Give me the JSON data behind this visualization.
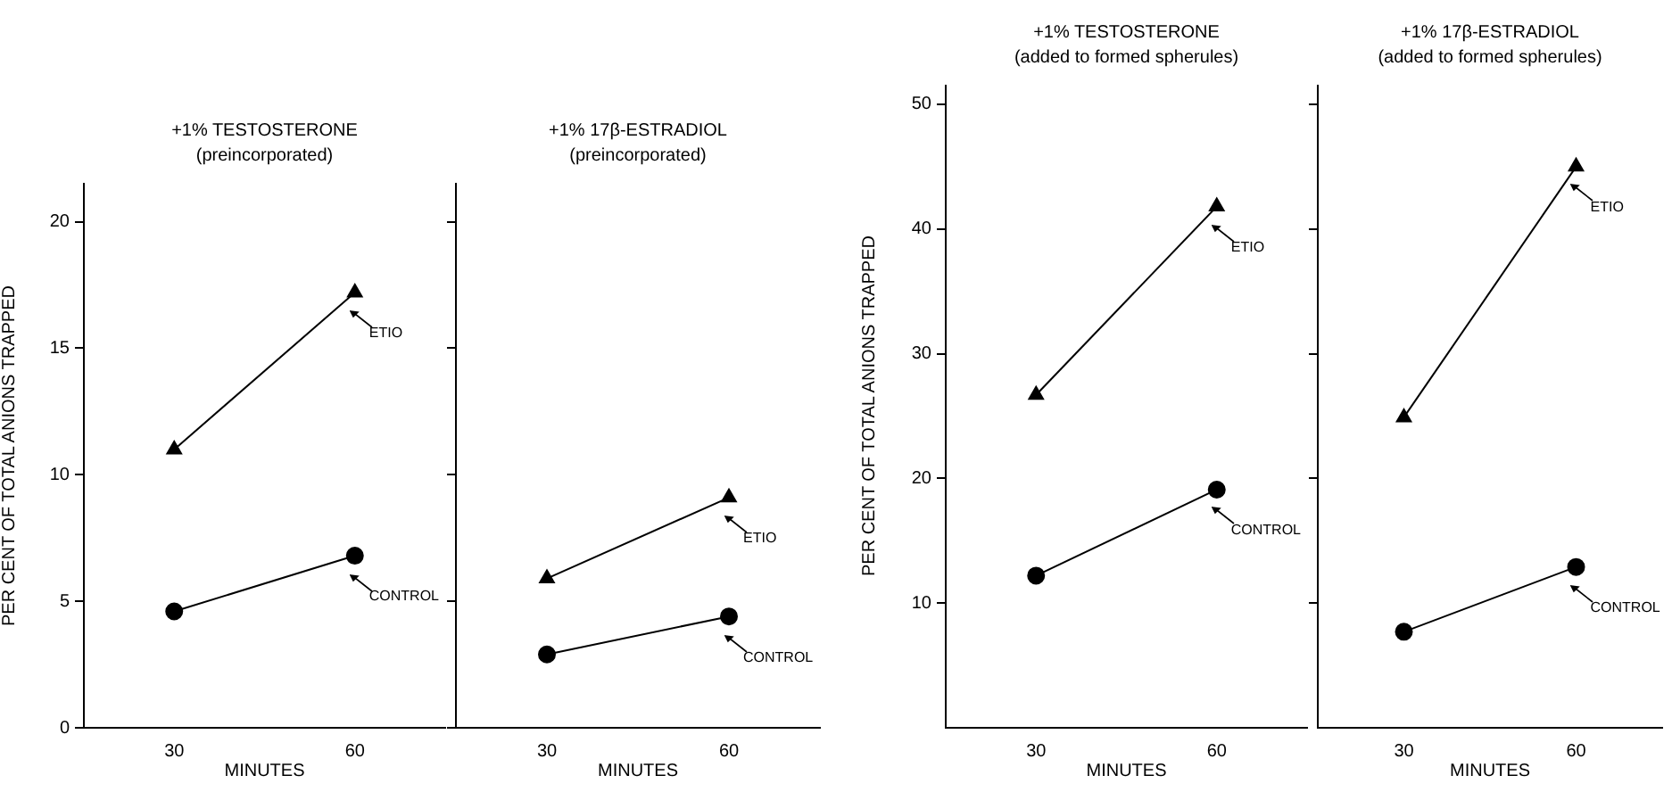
{
  "chart_data": [
    {
      "type": "line",
      "title": "+1% TESTOSTERONE",
      "subtitle": "(preincorporated)",
      "xlabel": "MINUTES",
      "ylabel": "PER CENT OF TOTAL ANIONS TRAPPED",
      "categories": [
        "30",
        "60"
      ],
      "series": [
        {
          "name": "ETIO",
          "color": "#000000",
          "marker": "triangle",
          "values": [
            11,
            17.2
          ]
        },
        {
          "name": "CONTROL",
          "color": "#000000",
          "marker": "circle",
          "values": [
            4.6,
            6.8
          ]
        }
      ],
      "ylim": [
        0,
        21.5
      ],
      "yticks": [
        0,
        5,
        10,
        15,
        20
      ],
      "legend": "right"
    },
    {
      "type": "line",
      "title": "+1% 17β-ESTRADIOL",
      "subtitle": "(preincorporated)",
      "xlabel": "MINUTES",
      "categories": [
        "30",
        "60"
      ],
      "series": [
        {
          "name": "ETIO",
          "color": "#000000",
          "marker": "triangle",
          "values": [
            5.9,
            9.1
          ]
        },
        {
          "name": "CONTROL",
          "color": "#000000",
          "marker": "circle",
          "values": [
            2.9,
            4.4
          ]
        }
      ],
      "ylim": [
        0,
        21.5
      ],
      "yticks": [
        0,
        5,
        10,
        15,
        20
      ],
      "tick_labels": "x",
      "legend": "right"
    },
    {
      "type": "line",
      "title": "+1% TESTOSTERONE",
      "subtitle": "(added to formed spherules)",
      "xlabel": "MINUTES",
      "ylabel": "PER CENT OF TOTAL ANIONS TRAPPED",
      "categories": [
        "30",
        "60"
      ],
      "series": [
        {
          "name": "ETIO",
          "color": "#000000",
          "marker": "triangle",
          "values": [
            26.7,
            41.8
          ]
        },
        {
          "name": "CONTROL",
          "color": "#000000",
          "marker": "circle",
          "values": [
            12.2,
            19.1
          ]
        }
      ],
      "ylim": [
        0,
        51.5
      ],
      "yticks": [
        10,
        20,
        30,
        40,
        50
      ],
      "legend": "right"
    },
    {
      "type": "line",
      "title": "+1% 17β-ESTRADIOL",
      "subtitle": "(added to formed spherules)",
      "xlabel": "MINUTES",
      "categories": [
        "30",
        "60"
      ],
      "series": [
        {
          "name": "ETIO",
          "color": "#000000",
          "marker": "triangle",
          "values": [
            24.9,
            45
          ]
        },
        {
          "name": "CONTROL",
          "color": "#000000",
          "marker": "circle",
          "values": [
            7.7,
            12.9
          ]
        }
      ],
      "ylim": [
        0,
        51.5
      ],
      "yticks": [
        10,
        20,
        30,
        40,
        50
      ],
      "tick_labels": "x",
      "legend": "right"
    }
  ]
}
